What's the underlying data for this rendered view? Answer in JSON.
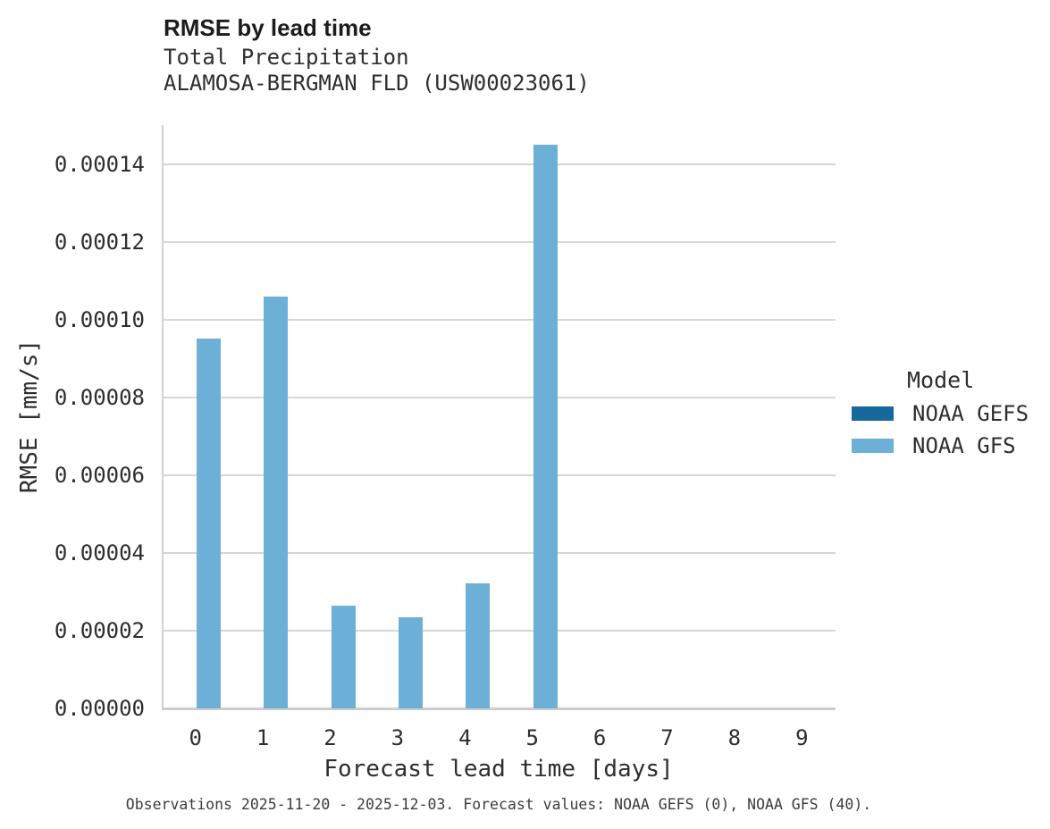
{
  "chart_data": {
    "type": "bar",
    "title": "RMSE by lead time",
    "subtitle": [
      "Total Precipitation",
      "ALAMOSA-BERGMAN FLD (USW00023061)"
    ],
    "categories": [
      "0",
      "1",
      "2",
      "3",
      "4",
      "5",
      "6",
      "7",
      "8",
      "9"
    ],
    "series": [
      {
        "name": "NOAA GEFS",
        "color": "#17689b",
        "values": [
          0,
          0,
          0,
          0,
          0,
          0,
          0,
          0,
          0,
          0
        ]
      },
      {
        "name": "NOAA GFS",
        "color": "#6cb0d8",
        "values": [
          9.5e-05,
          0.000106,
          2.65e-05,
          2.35e-05,
          3.22e-05,
          0.000145,
          0,
          0,
          0,
          0
        ]
      }
    ],
    "xlabel": "Forecast lead time [days]",
    "ylabel": "RMSE [mm/s]",
    "ylim": [
      0,
      0.00015
    ],
    "yticks": {
      "values": [
        0,
        2e-05,
        4e-05,
        6e-05,
        8e-05,
        0.0001,
        0.00012,
        0.00014
      ],
      "labels": [
        "0.00000",
        "0.00002",
        "0.00004",
        "0.00006",
        "0.00008",
        "0.00010",
        "0.00012",
        "0.00014"
      ]
    },
    "grid": "horizontal",
    "legend": {
      "title": "Model",
      "position": "right"
    }
  },
  "caption": "Observations 2025-11-20 - 2025-12-03. Forecast values: NOAA GEFS (0), NOAA GFS (40)."
}
